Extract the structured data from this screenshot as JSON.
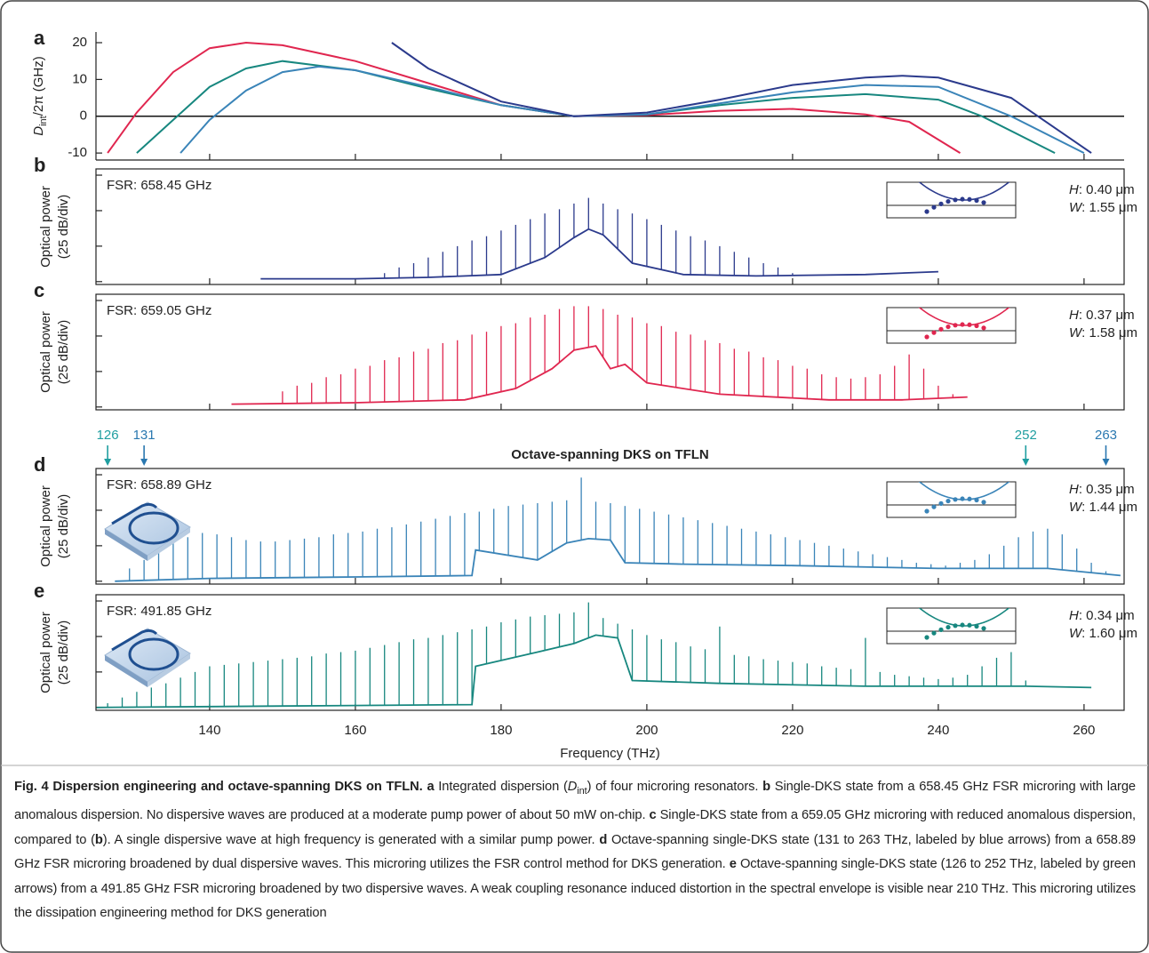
{
  "chart_data": [
    {
      "type": "line",
      "panel_label": "a",
      "ylabel": {
        "symbol": "D",
        "subscript": "int",
        "rest": "/2π (GHz)"
      },
      "xlim": [
        124.4,
        265.5
      ],
      "xticks": [
        140,
        160,
        180,
        200,
        220,
        240,
        260
      ],
      "ylim": [
        -11.9,
        22.9
      ],
      "yticks": [
        -10,
        0,
        10,
        20
      ],
      "zero_line": true,
      "series": [
        {
          "color": "#e0264f",
          "x": [
            126,
            130,
            135,
            140,
            145,
            150,
            160,
            170,
            180,
            190,
            200,
            210,
            220,
            230,
            236,
            243
          ],
          "values": [
            -10,
            1,
            12,
            18.5,
            20,
            19.3,
            15,
            9,
            3,
            0,
            0.3,
            1.5,
            2,
            0.5,
            -1.5,
            -10
          ]
        },
        {
          "color": "#17877f",
          "x": [
            130,
            135,
            140,
            145,
            150,
            160,
            170,
            180,
            190,
            200,
            210,
            220,
            230,
            240,
            246,
            256
          ],
          "values": [
            -10,
            -1,
            8,
            13,
            15,
            12.5,
            7.5,
            3,
            0,
            0.5,
            3,
            5,
            6,
            4.5,
            0,
            -10
          ]
        },
        {
          "color": "#3a84b8",
          "x": [
            136,
            140,
            145,
            150,
            155,
            160,
            170,
            180,
            190,
            200,
            210,
            220,
            230,
            240,
            250,
            260
          ],
          "values": [
            -10,
            -1,
            7,
            12,
            13.5,
            12.5,
            8,
            3,
            0,
            0.5,
            3.5,
            6.5,
            8.5,
            8,
            0,
            -10
          ]
        },
        {
          "color": "#2b3a8c",
          "x": [
            165,
            170,
            180,
            190,
            200,
            210,
            220,
            230,
            235,
            240,
            250,
            261
          ],
          "values": [
            20,
            13,
            4,
            0,
            1,
            4.5,
            8.5,
            10.5,
            11,
            10.5,
            5,
            -10
          ]
        }
      ]
    },
    {
      "type": "comb",
      "panel_label": "b",
      "fsr_label": "FSR: 658.45 GHz",
      "ylabel": [
        "Optical power",
        "(25 dB/div)"
      ],
      "xlim": [
        124.4,
        265.5
      ],
      "xticks": [
        140,
        160,
        180,
        200,
        220,
        240,
        260
      ],
      "ylim": [
        -77,
        4.4
      ],
      "yticks": [
        -75,
        -50,
        -25,
        0
      ],
      "color": "#2b3a8c",
      "lines": {
        "x": [
          164,
          166,
          168,
          170,
          172,
          174,
          176,
          178,
          180,
          182,
          184,
          186,
          188,
          190,
          192,
          194,
          196,
          198,
          200,
          202,
          204,
          206,
          208,
          210,
          212,
          214,
          216,
          218,
          220
        ],
        "values": [
          -69,
          -65,
          -62,
          -58,
          -54,
          -50,
          -46,
          -43,
          -39,
          -35,
          -31,
          -27,
          -24,
          -20,
          -16,
          -20,
          -24,
          -27,
          -31,
          -35,
          -39,
          -43,
          -46,
          -50,
          -54,
          -58,
          -62,
          -65,
          -69
        ]
      },
      "floor": {
        "x": [
          147,
          160,
          170,
          180,
          186,
          190,
          192,
          194,
          198,
          205,
          215,
          230,
          240
        ],
        "values": [
          -73,
          -73,
          -72,
          -70,
          -58,
          -44,
          -38,
          -42,
          -62,
          -70,
          -71,
          -70,
          -68
        ]
      },
      "inset": {
        "h_symbol": "H",
        "h_text": ": 0.40 μm",
        "w_symbol": "W",
        "w_text": ": 1.55 μm"
      }
    },
    {
      "type": "comb",
      "panel_label": "c",
      "fsr_label": "FSR: 659.05 GHz",
      "ylabel": [
        "Optical power",
        "(25 dB/div)"
      ],
      "xlim": [
        124.4,
        265.5
      ],
      "xticks": [
        140,
        160,
        180,
        200,
        220,
        240,
        260
      ],
      "ylim": [
        -77,
        4.4
      ],
      "yticks": [
        -75,
        -50,
        -25,
        0
      ],
      "color": "#e0264f",
      "lines": {
        "x": [
          150,
          152,
          154,
          156,
          158,
          160,
          162,
          164,
          166,
          168,
          170,
          172,
          174,
          176,
          178,
          180,
          182,
          184,
          186,
          188,
          190,
          192,
          194,
          196,
          198,
          200,
          202,
          204,
          206,
          208,
          210,
          212,
          214,
          216,
          218,
          220,
          222,
          224,
          226,
          228,
          230,
          232,
          234,
          236,
          238,
          240,
          242
        ],
        "values": [
          -64,
          -60,
          -58,
          -54,
          -52,
          -48,
          -46,
          -42,
          -40,
          -36,
          -34,
          -30,
          -28,
          -24,
          -22,
          -18,
          -16,
          -12,
          -10,
          -6,
          -4,
          -4,
          -6,
          -10,
          -12,
          -16,
          -18,
          -22,
          -24,
          -28,
          -30,
          -34,
          -36,
          -40,
          -42,
          -46,
          -48,
          -52,
          -54,
          -55,
          -54,
          -52,
          -46,
          -38,
          -48,
          -60,
          -66
        ]
      },
      "floor": {
        "x": [
          143,
          160,
          175,
          182,
          187,
          190,
          193,
          195,
          197,
          200,
          210,
          225,
          235,
          244
        ],
        "values": [
          -73,
          -72,
          -70,
          -62,
          -48,
          -35,
          -32,
          -48,
          -45,
          -58,
          -66,
          -70,
          -70,
          -68
        ]
      },
      "inset": {
        "h_symbol": "H",
        "h_text": ": 0.37 μm",
        "w_symbol": "W",
        "w_text": ": 1.58 μm"
      }
    },
    {
      "type": "comb",
      "panel_label": "d",
      "fsr_label": "FSR: 658.89 GHz",
      "ylabel": [
        "Optical power",
        "(25 dB/div)"
      ],
      "title": "Octave-spanning DKS on TFLN",
      "arrows": [
        {
          "value": 126,
          "color": "#1f9ea0"
        },
        {
          "value": 131,
          "color": "#2a78b0"
        },
        {
          "value": 252,
          "color": "#1f9ea0"
        },
        {
          "value": 263,
          "color": "#2a78b0"
        }
      ],
      "ring_icon": true,
      "xlim": [
        124.4,
        265.5
      ],
      "xticks": [
        140,
        160,
        180,
        200,
        220,
        240,
        260
      ],
      "ylim": [
        -77,
        4.4
      ],
      "yticks": [
        -75,
        -50,
        -25,
        0
      ],
      "color": "#3a84b8",
      "lines": {
        "x": [
          129,
          131,
          133,
          135,
          137,
          139,
          141,
          143,
          145,
          147,
          149,
          151,
          153,
          155,
          157,
          159,
          161,
          163,
          165,
          167,
          169,
          171,
          173,
          175,
          177,
          179,
          181,
          183,
          185,
          187,
          189,
          191,
          193,
          195,
          197,
          199,
          201,
          203,
          205,
          207,
          209,
          211,
          213,
          215,
          217,
          219,
          221,
          223,
          225,
          227,
          229,
          231,
          233,
          235,
          237,
          239,
          241,
          243,
          245,
          247,
          249,
          251,
          253,
          255,
          257,
          259,
          261,
          263
        ],
        "values": [
          -66,
          -60,
          -54,
          -48,
          -44,
          -41,
          -42,
          -44,
          -46,
          -47,
          -47,
          -46,
          -45,
          -44,
          -42,
          -41,
          -40,
          -38,
          -37,
          -35,
          -33,
          -31,
          -29,
          -27,
          -26,
          -24,
          -22,
          -21,
          -20,
          -19,
          -18,
          -2,
          -19,
          -20,
          -22,
          -24,
          -26,
          -28,
          -30,
          -32,
          -34,
          -36,
          -38,
          -40,
          -42,
          -44,
          -46,
          -48,
          -50,
          -52,
          -54,
          -56,
          -58,
          -60,
          -62,
          -63,
          -64,
          -62,
          -60,
          -56,
          -50,
          -44,
          -40,
          -38,
          -42,
          -52,
          -62,
          -68
        ]
      },
      "floor": {
        "x": [
          127,
          140,
          160,
          176,
          176.5,
          185,
          189,
          192,
          195,
          197,
          205,
          220,
          240,
          255,
          265
        ],
        "values": [
          -75,
          -73,
          -72,
          -71,
          -53,
          -60,
          -48,
          -45,
          -46,
          -62,
          -63,
          -64,
          -66,
          -66,
          -71
        ]
      },
      "inset": {
        "h_symbol": "H",
        "h_text": ": 0.35 μm",
        "w_symbol": "W",
        "w_text": ": 1.44 μm"
      }
    },
    {
      "type": "comb",
      "panel_label": "e",
      "fsr_label": "FSR: 491.85 GHz",
      "ylabel": [
        "Optical power",
        "(25 dB/div)"
      ],
      "xlabel": "Frequency (THz)",
      "xtick_labels": true,
      "ring_icon": true,
      "xlim": [
        124.4,
        265.5
      ],
      "xticks": [
        140,
        160,
        180,
        200,
        220,
        240,
        260
      ],
      "ylim": [
        -77,
        4.4
      ],
      "yticks": [
        -75,
        -50,
        -25,
        0
      ],
      "color": "#17877f",
      "lines": {
        "x": [
          126,
          128,
          130,
          132,
          134,
          136,
          138,
          140,
          142,
          144,
          146,
          148,
          150,
          152,
          154,
          156,
          158,
          160,
          162,
          164,
          166,
          168,
          170,
          172,
          174,
          176,
          178,
          180,
          182,
          184,
          186,
          188,
          190,
          192,
          194,
          196,
          198,
          200,
          202,
          204,
          206,
          208,
          210,
          212,
          214,
          216,
          218,
          220,
          222,
          224,
          226,
          228,
          230,
          232,
          234,
          236,
          238,
          240,
          242,
          244,
          246,
          248,
          250,
          252
        ],
        "values": [
          -72,
          -68,
          -64,
          -61,
          -58,
          -54,
          -50,
          -46,
          -45,
          -44,
          -43,
          -42,
          -41,
          -40,
          -39,
          -37,
          -36,
          -35,
          -33,
          -31,
          -29,
          -27,
          -26,
          -24,
          -22,
          -20,
          -18,
          -15,
          -13,
          -11,
          -10,
          -9,
          -8,
          -1,
          -12,
          -16,
          -20,
          -24,
          -27,
          -29,
          -32,
          -34,
          -18,
          -38,
          -39,
          -41,
          -42,
          -43,
          -44,
          -46,
          -47,
          -48,
          -26,
          -50,
          -52,
          -53,
          -54,
          -55,
          -54,
          -52,
          -46,
          -40,
          -36,
          -56
        ]
      },
      "floor": {
        "x": [
          124.5,
          150,
          176,
          176.5,
          185,
          190,
          193,
          196,
          198,
          210,
          230,
          250,
          252,
          261
        ],
        "values": [
          -75,
          -74,
          -73,
          -46,
          -36,
          -30,
          -24,
          -26,
          -56,
          -58,
          -60,
          -60,
          -60,
          -61
        ]
      },
      "inset": {
        "h_symbol": "H",
        "h_text": ": 0.34 μm",
        "w_symbol": "W",
        "w_text": ": 1.60 μm"
      }
    }
  ],
  "caption": [
    {
      "text": "Fig. 4 Dispersion engineering and octave-spanning DKS on TFLN.",
      "bold": true
    },
    {
      "text": " a",
      "bold": true
    },
    {
      "text": " Integrated dispersion ("
    },
    {
      "text": "D",
      "italic": true
    },
    {
      "text": "int",
      "sub": true
    },
    {
      "text": ") of four microring resonators. "
    },
    {
      "text": "b",
      "bold": true
    },
    {
      "text": " Single-DKS state from a 658.45 GHz FSR microring with large anomalous dispersion. No dispersive waves are produced at a moderate pump power of about 50 mW on-chip. "
    },
    {
      "text": "c",
      "bold": true
    },
    {
      "text": " Single-DKS state from a 659.05 GHz microring with reduced anomalous dispersion, compared to ("
    },
    {
      "text": "b",
      "bold": true
    },
    {
      "text": "). A single dispersive wave at high frequency is generated with a similar pump power. "
    },
    {
      "text": "d",
      "bold": true
    },
    {
      "text": " Octave-spanning single-DKS state (131 to 263 THz, labeled by blue arrows) from a 658.89 GHz FSR microring broadened by dual dispersive waves. This microring utilizes the FSR control method for DKS generation. "
    },
    {
      "text": "e",
      "bold": true
    },
    {
      "text": " Octave-spanning single-DKS state (126 to 252 THz, labeled by green arrows) from a 491.85 GHz FSR microring broadened by two dispersive waves. A weak coupling resonance induced distortion in the spectral envelope is visible near 210 THz. This microring utilizes the dissipation engineering method for DKS generation"
    }
  ]
}
